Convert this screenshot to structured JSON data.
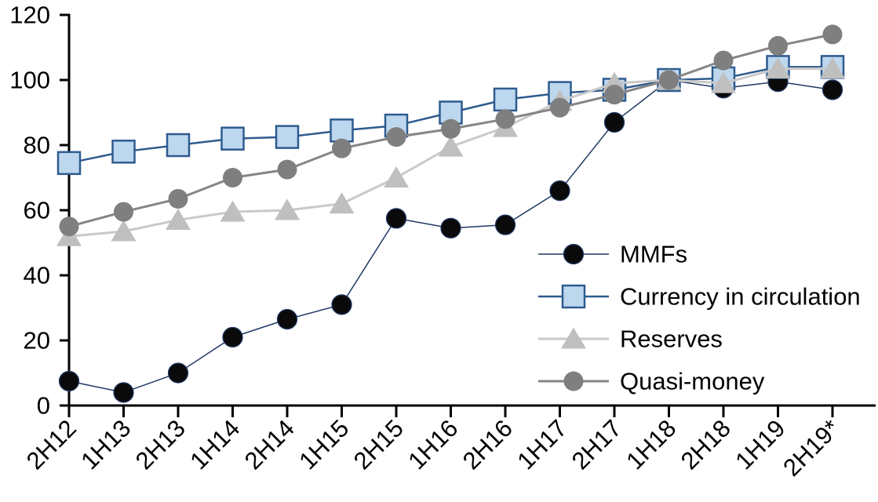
{
  "chart_data": {
    "type": "line",
    "title": "",
    "xlabel": "",
    "ylabel": "",
    "ylim": [
      0,
      120
    ],
    "yticks": [
      0,
      20,
      40,
      60,
      80,
      100,
      120
    ],
    "grid": false,
    "legend_position": "middle-right",
    "categories": [
      "2H12",
      "1H13",
      "2H13",
      "1H14",
      "2H14",
      "1H15",
      "2H15",
      "1H16",
      "2H16",
      "1H17",
      "2H17",
      "1H18",
      "2H18",
      "1H19",
      "2H19*"
    ],
    "series": [
      {
        "name": "MMFs",
        "marker": "circle",
        "line_color": "#1F3864",
        "line_width": 1.5,
        "marker_fill": "#0a0a0a",
        "marker_stroke": "#1F3864",
        "marker_stroke_width": 1.25,
        "values": [
          7.5,
          4,
          10,
          21,
          26.5,
          31,
          57.5,
          54.5,
          55.5,
          66,
          87,
          100,
          97.5,
          99.5,
          97
        ]
      },
      {
        "name": "Currency in circulation",
        "marker": "square",
        "line_color": "#2E5B8F",
        "line_width": 2.5,
        "marker_fill": "#BDD7EE",
        "marker_stroke": "#2E5B8F",
        "marker_stroke_width": 2.5,
        "values": [
          74.5,
          78,
          80,
          82,
          82.5,
          84.5,
          86,
          90,
          94,
          96,
          97,
          100,
          100.5,
          104,
          104
        ]
      },
      {
        "name": "Reserves",
        "marker": "triangle",
        "line_color": "#C9C9C9",
        "line_width": 3,
        "marker_fill": "#BFBFBF",
        "marker_stroke": "none",
        "marker_stroke_width": 0,
        "values": [
          52,
          53.5,
          57,
          59.5,
          60,
          62,
          70,
          79.5,
          85.5,
          93.5,
          99,
          100,
          99,
          103.5,
          103.5
        ]
      },
      {
        "name": "Quasi-money",
        "marker": "circle",
        "line_color": "#858585",
        "line_width": 3,
        "marker_fill": "#7F7F7F",
        "marker_stroke": "none",
        "marker_stroke_width": 0,
        "values": [
          55,
          59.5,
          63.5,
          70,
          72.5,
          79,
          82.5,
          85,
          88,
          91.5,
          95.5,
          100,
          106,
          110.5,
          114
        ]
      }
    ],
    "axis_color": "#000000",
    "tick_font_size": 31,
    "legend_font_size": 31
  }
}
